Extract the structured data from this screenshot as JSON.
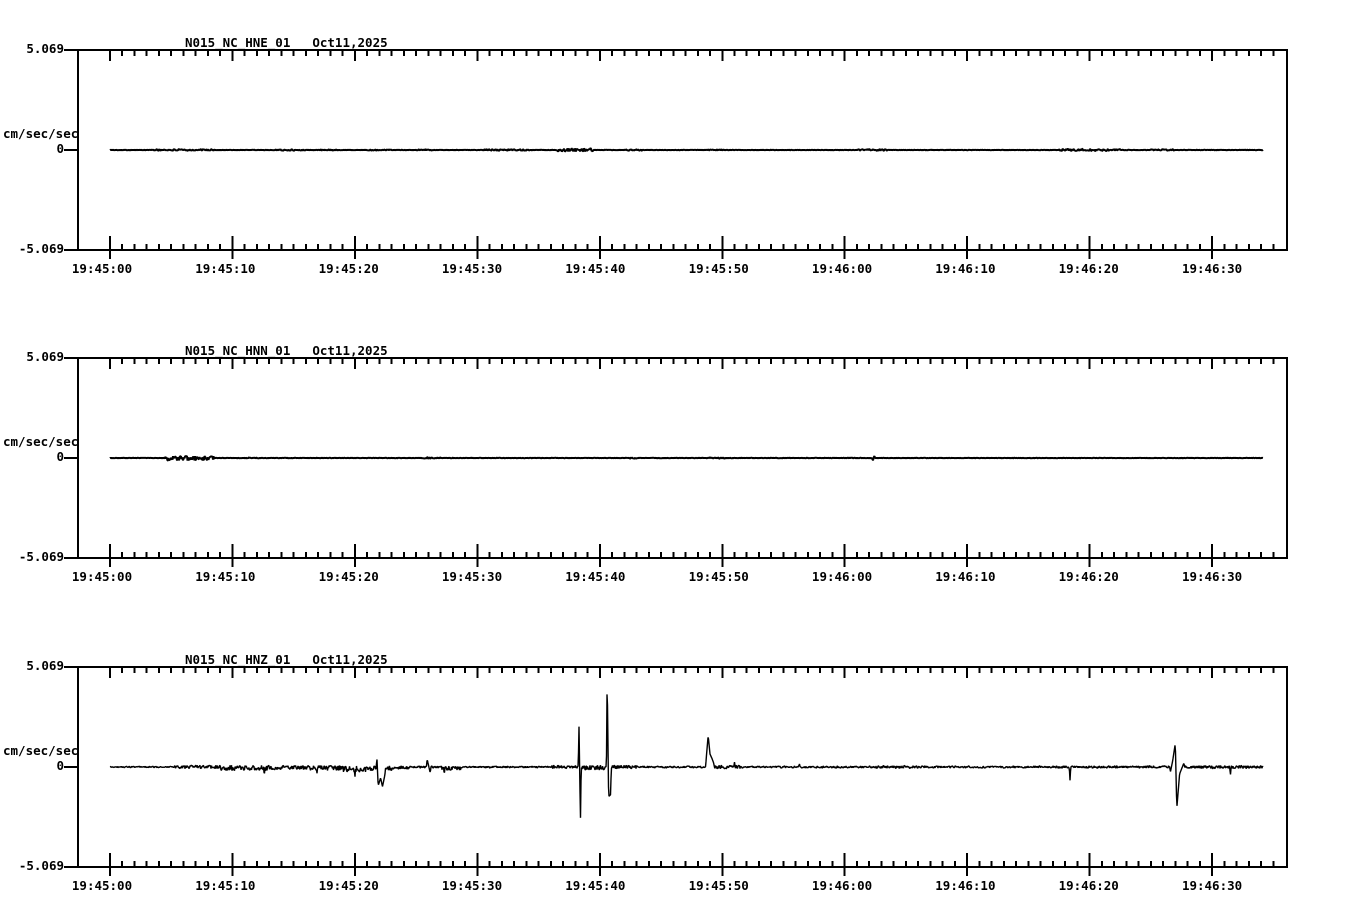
{
  "figure": {
    "kind": "seismogram-triptych",
    "background": "#ffffff",
    "ink": "#000000"
  },
  "chart_data": [
    {
      "type": "line",
      "station": "N015_NC_HNE_01",
      "date": "Oct11,2025",
      "ylabel": "cm/sec/sec",
      "ylim": [
        -5.069,
        5.069
      ],
      "yticklabels": [
        "5.069",
        "0",
        "-5.069"
      ],
      "xticklabels": [
        "19:45:00",
        "19:45:10",
        "19:45:20",
        "19:45:30",
        "19:45:40",
        "19:45:50",
        "19:46:00",
        "19:46:10",
        "19:46:20",
        "19:46:30"
      ],
      "x_major_tick_s": 10,
      "x_minor_tick_s": 1,
      "x_axis_span_s": [
        0,
        96.1
      ],
      "trace_span_s": [
        0,
        94.2
      ],
      "grid": false,
      "legend": false,
      "noise_base_amp": 0.012,
      "noise_bursts": [
        [
          3.5,
          8.5,
          0.045
        ],
        [
          13.5,
          16,
          0.04
        ],
        [
          17,
          18.5,
          0.035
        ],
        [
          21,
          23,
          0.03
        ],
        [
          25,
          26.5,
          0.03
        ],
        [
          30.5,
          34.5,
          0.05
        ],
        [
          36.5,
          39.5,
          0.09
        ],
        [
          42,
          43.5,
          0.035
        ],
        [
          48.8,
          50.2,
          0.03
        ],
        [
          61,
          63.5,
          0.05
        ],
        [
          77.5,
          82.5,
          0.06
        ],
        [
          85,
          87,
          0.04
        ]
      ],
      "events": []
    },
    {
      "type": "line",
      "station": "N015_NC_HNN_01",
      "date": "Oct11,2025",
      "ylabel": "cm/sec/sec",
      "ylim": [
        -5.069,
        5.069
      ],
      "yticklabels": [
        "5.069",
        "0",
        "-5.069"
      ],
      "xticklabels": [
        "19:45:00",
        "19:45:10",
        "19:45:20",
        "19:45:30",
        "19:45:40",
        "19:45:50",
        "19:46:00",
        "19:46:10",
        "19:46:20",
        "19:46:30"
      ],
      "x_major_tick_s": 10,
      "x_minor_tick_s": 1,
      "x_axis_span_s": [
        0,
        96.1
      ],
      "trace_span_s": [
        0,
        94.2
      ],
      "grid": false,
      "legend": false,
      "noise_base_amp": 0.012,
      "noise_bursts": [
        [
          4.5,
          8.5,
          0.12,
          -0.02
        ],
        [
          11,
          12.2,
          0.03
        ],
        [
          25.5,
          27,
          0.035
        ],
        [
          42,
          43,
          0.035
        ],
        [
          48.8,
          50.2,
          0.03
        ],
        [
          60.2,
          60.8,
          0.03
        ]
      ],
      "events": [
        [
          62.3,
          -0.14
        ],
        [
          62.42,
          0.12
        ]
      ]
    },
    {
      "type": "line",
      "station": "N015_NC_HNZ_01",
      "date": "Oct11,2025",
      "ylabel": "cm/sec/sec",
      "ylim": [
        -5.069,
        5.069
      ],
      "yticklabels": [
        "5.069",
        "0",
        "-5.069"
      ],
      "xticklabels": [
        "19:45:00",
        "19:45:10",
        "19:45:20",
        "19:45:30",
        "19:45:40",
        "19:45:50",
        "19:46:00",
        "19:46:10",
        "19:46:20",
        "19:46:30"
      ],
      "x_major_tick_s": 10,
      "x_minor_tick_s": 1,
      "x_axis_span_s": [
        0,
        96.1
      ],
      "trace_span_s": [
        0,
        94.2
      ],
      "grid": false,
      "legend": false,
      "noise_base_amp": 0.03,
      "noise_bursts": [
        [
          0,
          5,
          0.035
        ],
        [
          5,
          9,
          0.09
        ],
        [
          9,
          13,
          0.14,
          -0.05
        ],
        [
          13,
          16,
          0.11,
          -0.03
        ],
        [
          16,
          19,
          0.13,
          -0.05
        ],
        [
          19,
          23,
          0.16,
          -0.1
        ],
        [
          23,
          24.5,
          0.09,
          -0.03
        ],
        [
          24.5,
          27,
          0.05
        ],
        [
          27,
          28.7,
          0.11,
          -0.06
        ],
        [
          28.7,
          36,
          0.045
        ],
        [
          36,
          38.2,
          0.09
        ],
        [
          38.5,
          40.4,
          0.13,
          -0.03
        ],
        [
          40.9,
          43,
          0.09
        ],
        [
          43,
          48.5,
          0.05
        ],
        [
          49.4,
          51.5,
          0.09
        ],
        [
          51.5,
          62,
          0.05
        ],
        [
          62,
          66,
          0.07
        ],
        [
          66,
          77,
          0.055
        ],
        [
          77,
          86.5,
          0.065
        ],
        [
          87.8,
          94.2,
          0.08
        ]
      ],
      "events": [
        [
          12.6,
          -0.45
        ],
        [
          16.9,
          -0.35
        ],
        [
          20.0,
          -0.57
        ],
        [
          21.8,
          0.45
        ],
        [
          21.9,
          -0.95
        ],
        [
          22.1,
          -0.55
        ],
        [
          22.25,
          -1.0
        ],
        [
          22.45,
          -0.4
        ],
        [
          25.9,
          0.4
        ],
        [
          26.15,
          -0.3
        ],
        [
          27.3,
          -0.4
        ],
        [
          38.3,
          2.1
        ],
        [
          38.42,
          -2.75
        ],
        [
          40.6,
          4.6
        ],
        [
          40.72,
          -1.5
        ],
        [
          40.88,
          -1.4
        ],
        [
          48.7,
          0.5
        ],
        [
          48.85,
          1.6
        ],
        [
          49.0,
          0.65
        ],
        [
          49.15,
          0.45
        ],
        [
          49.3,
          0.2
        ],
        [
          51.0,
          0.25
        ],
        [
          56.3,
          0.18
        ],
        [
          78.4,
          -0.68
        ],
        [
          86.6,
          -0.25
        ],
        [
          86.78,
          0.3
        ],
        [
          87.0,
          1.2
        ],
        [
          87.12,
          -2.1
        ],
        [
          87.35,
          -0.35
        ],
        [
          87.7,
          0.2
        ],
        [
          91.5,
          -0.42
        ]
      ]
    }
  ]
}
